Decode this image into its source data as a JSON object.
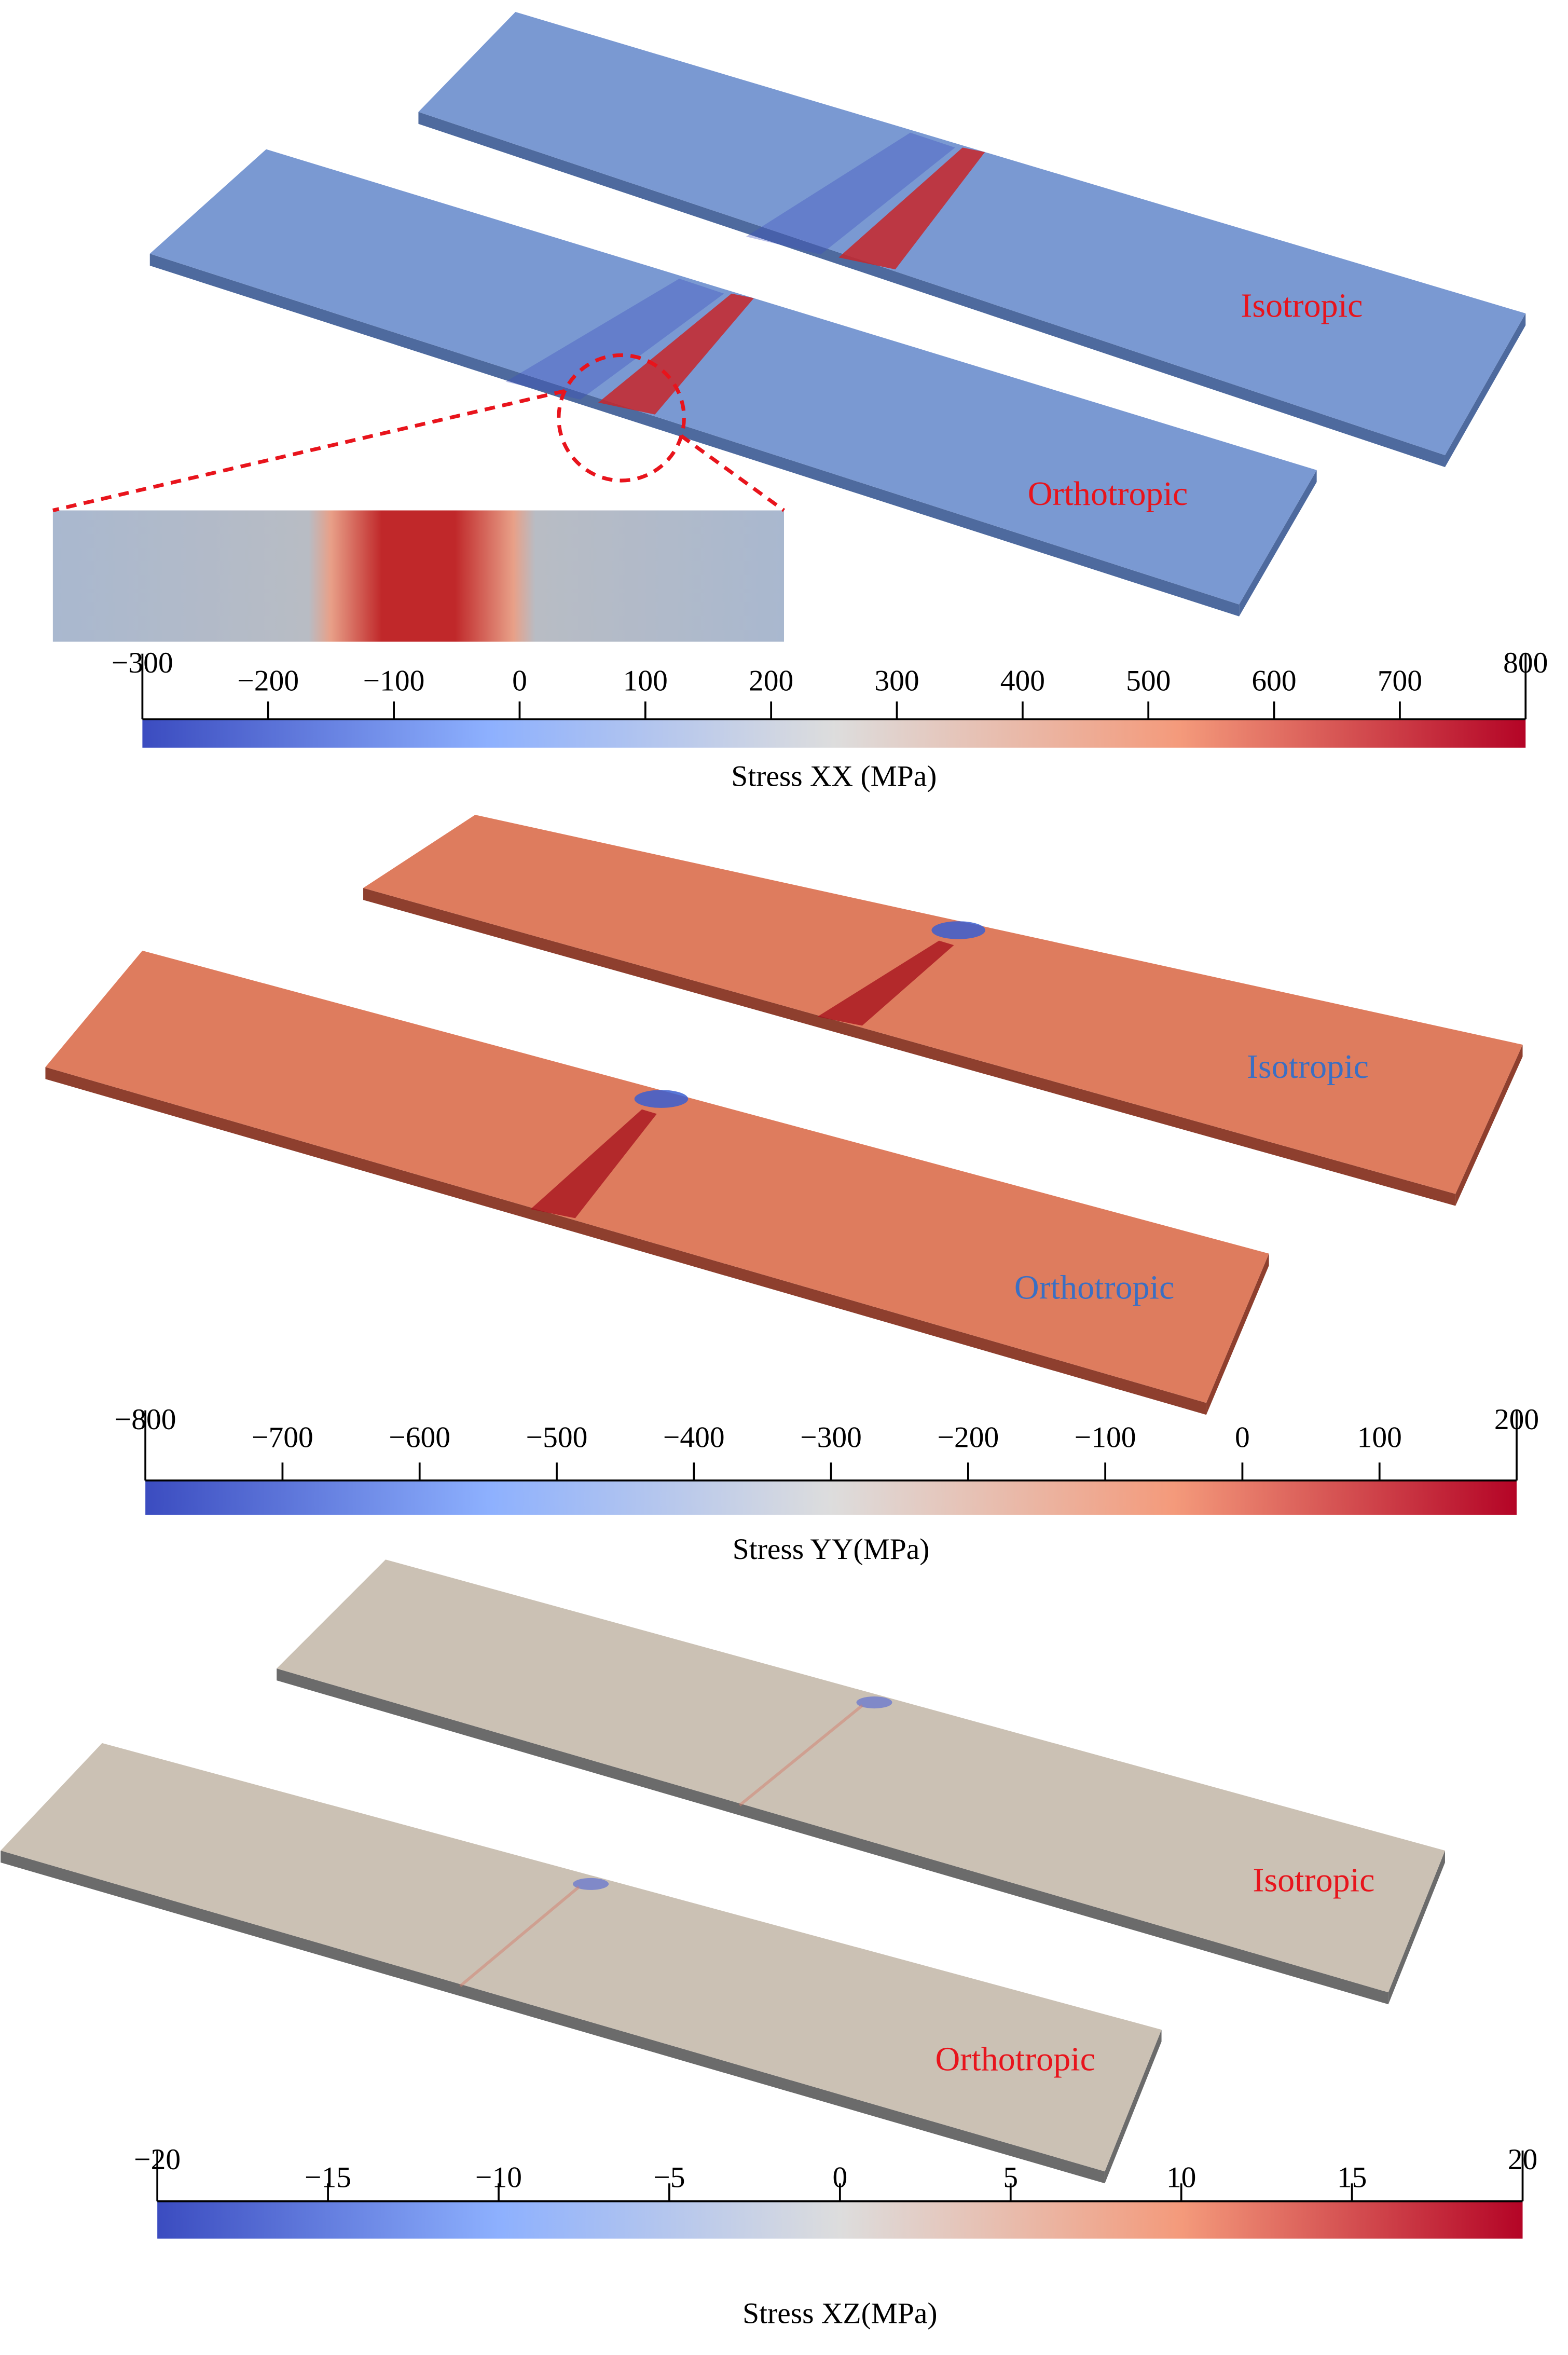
{
  "colormap": [
    "#3b4cc0",
    "#8db0fe",
    "#dddddd",
    "#f49a7b",
    "#b40426"
  ],
  "panels": [
    {
      "labels": [
        "Isotropic",
        "Orthotropic"
      ],
      "label_color": "#e8141c",
      "colorbar": {
        "title": "Stress XX (MPa)",
        "lim": [
          -300,
          800
        ],
        "ticks": [
          {
            "value": -300,
            "label": "−300"
          },
          {
            "value": -200,
            "label": "−200"
          },
          {
            "value": -100,
            "label": "−100"
          },
          0,
          100,
          200,
          300,
          400,
          500,
          600,
          700,
          800
        ]
      }
    },
    {
      "labels": [
        "Isotropic",
        "Orthotropic"
      ],
      "label_color": "#3a6fc4",
      "colorbar": {
        "title": "Stress YY(MPa)",
        "lim": [
          -800,
          200
        ],
        "ticks": [
          {
            "value": -800,
            "label": "−800"
          },
          {
            "value": -700,
            "label": "−700"
          },
          {
            "value": -600,
            "label": "−600"
          },
          {
            "value": -500,
            "label": "−500"
          },
          {
            "value": -400,
            "label": "−400"
          },
          {
            "value": -300,
            "label": "−300"
          },
          {
            "value": -200,
            "label": "−200"
          },
          {
            "value": -100,
            "label": "−100"
          },
          0,
          100,
          200
        ]
      }
    },
    {
      "labels": [
        "Isotropic",
        "Orthotropic"
      ],
      "label_color": "#e8141c",
      "colorbar": {
        "title": "Stress XZ(MPa)",
        "lim": [
          -20,
          20
        ],
        "ticks": [
          {
            "value": -20,
            "label": "−20"
          },
          {
            "value": -15,
            "label": "−15"
          },
          {
            "value": -10,
            "label": "−10"
          },
          {
            "value": -5,
            "label": "−5"
          },
          0,
          5,
          10,
          15,
          20
        ]
      }
    }
  ]
}
